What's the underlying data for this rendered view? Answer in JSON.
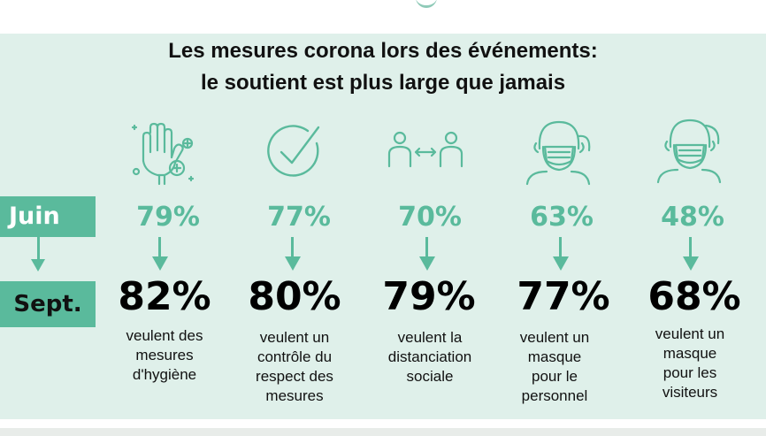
{
  "title": {
    "line1": "Les mesures corona lors des événements:",
    "line2": "le soutient est plus large que jamais"
  },
  "labels": {
    "juin": "Juin",
    "sept": "Sept."
  },
  "colors": {
    "accent": "#5aba9c",
    "background": "#dff0ea",
    "text": "#000000"
  },
  "items": [
    {
      "icon": "hand-hygiene-icon",
      "juin": "79%",
      "sept": "82%",
      "desc": [
        "veulent des",
        "mesures",
        "d'hygiène"
      ]
    },
    {
      "icon": "checkmark-circle-icon",
      "juin": "77%",
      "sept": "80%",
      "desc": [
        "veulent un",
        "contrôle du",
        "respect des",
        "mesures"
      ]
    },
    {
      "icon": "social-distance-icon",
      "juin": "70%",
      "sept": "79%",
      "desc": [
        "veulent la",
        "distanciation",
        "sociale"
      ]
    },
    {
      "icon": "masked-person-staff-icon",
      "juin": "63%",
      "sept": "77%",
      "desc": [
        "veulent un",
        "masque",
        "pour le",
        "personnel"
      ]
    },
    {
      "icon": "masked-person-visitor-icon",
      "juin": "48%",
      "sept": "68%",
      "desc": [
        "veulent un",
        "masque",
        "pour les",
        "visiteurs"
      ]
    }
  ]
}
